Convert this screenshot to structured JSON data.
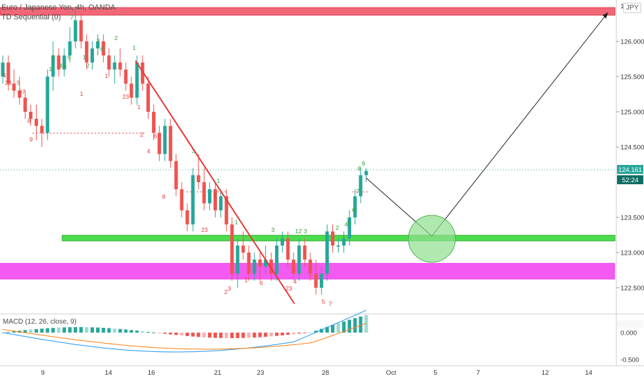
{
  "header": {
    "symbol_line": "Euro / Japanese Yen, 4h, OANDA",
    "indicator_line": "TD Sequential (0)"
  },
  "currency_tag": "JPY",
  "macd_label": "MACD (12, 26, close, 9)",
  "price_axis": {
    "ticks": [
      "126.000",
      "125.500",
      "125.000",
      "124.500",
      "123.500",
      "123.000",
      "122.500"
    ],
    "partial_labels": [
      "1",
      "1"
    ]
  },
  "price_tags": {
    "last": "124.161",
    "countdown": "52:24"
  },
  "macd_axis": {
    "ticks": [
      "0.000",
      "-0.500"
    ]
  },
  "time_axis": {
    "labels": [
      "9",
      "14",
      "16",
      "21",
      "23",
      "28",
      "Oct",
      "5",
      "7",
      "12",
      "14"
    ]
  },
  "colors": {
    "bull": "#26a69a",
    "bear": "#ef5350",
    "resistance_zone": "#f06778",
    "support_green": "#4ddc4d",
    "support_magenta": "#f25af2",
    "trendline": "#e53935",
    "target_circle": "#8fe08f",
    "tag_green": "#26a69a",
    "tag_dark": "#0f6e66",
    "macd_line": "#2196f3",
    "signal_line": "#ff7f0e"
  },
  "chart_data": {
    "type": "candlestick",
    "instrument": "Euro / Japanese Yen",
    "timeframe": "4h",
    "y_range": [
      122.2,
      126.9
    ],
    "visible_price_ticks": [
      126.0,
      125.5,
      125.0,
      124.5,
      123.5,
      123.0,
      122.5
    ],
    "last_price": 124.161,
    "candles_ohlc_approx": [
      [
        125.5,
        125.8,
        125.4,
        125.7
      ],
      [
        125.7,
        125.8,
        125.3,
        125.4
      ],
      [
        125.4,
        125.6,
        125.2,
        125.3
      ],
      [
        125.3,
        125.5,
        125.1,
        125.2
      ],
      [
        125.2,
        125.3,
        124.9,
        125.0
      ],
      [
        125.0,
        125.1,
        124.8,
        124.9
      ],
      [
        124.9,
        125.1,
        124.6,
        124.8
      ],
      [
        124.8,
        124.9,
        124.5,
        124.7
      ],
      [
        124.7,
        125.6,
        124.6,
        125.5
      ],
      [
        125.5,
        126.0,
        125.3,
        125.8
      ],
      [
        125.8,
        125.9,
        125.5,
        125.6
      ],
      [
        125.6,
        125.9,
        125.5,
        125.8
      ],
      [
        125.8,
        126.2,
        125.7,
        126.0
      ],
      [
        126.0,
        126.5,
        125.9,
        126.3
      ],
      [
        126.3,
        126.4,
        125.9,
        126.0
      ],
      [
        126.0,
        126.1,
        125.6,
        125.7
      ],
      [
        125.7,
        126.0,
        125.6,
        125.9
      ],
      [
        125.9,
        126.1,
        125.8,
        126.0
      ],
      [
        126.0,
        126.1,
        125.7,
        125.8
      ],
      [
        125.8,
        125.9,
        125.5,
        125.6
      ],
      [
        125.6,
        125.8,
        125.4,
        125.7
      ],
      [
        125.7,
        125.9,
        125.5,
        125.6
      ],
      [
        125.6,
        125.7,
        125.3,
        125.4
      ],
      [
        125.4,
        125.5,
        125.1,
        125.2
      ],
      [
        125.2,
        125.8,
        125.1,
        125.7
      ],
      [
        125.7,
        125.8,
        125.3,
        125.4
      ],
      [
        125.4,
        125.5,
        124.9,
        125.0
      ],
      [
        125.0,
        125.1,
        124.6,
        124.7
      ],
      [
        124.7,
        124.8,
        124.3,
        124.4
      ],
      [
        124.4,
        124.9,
        124.3,
        124.8
      ],
      [
        124.8,
        124.9,
        124.2,
        124.3
      ],
      [
        124.3,
        124.4,
        123.8,
        123.9
      ],
      [
        123.9,
        124.0,
        123.5,
        123.6
      ],
      [
        123.6,
        123.7,
        123.3,
        123.4
      ],
      [
        123.4,
        124.2,
        123.3,
        124.1
      ],
      [
        124.1,
        124.4,
        123.9,
        124.0
      ],
      [
        124.0,
        124.2,
        123.6,
        123.7
      ],
      [
        123.7,
        124.0,
        123.6,
        123.9
      ],
      [
        123.9,
        124.0,
        123.5,
        123.6
      ],
      [
        123.6,
        123.9,
        123.5,
        123.8
      ],
      [
        123.8,
        123.9,
        123.3,
        123.4
      ],
      [
        123.4,
        123.5,
        122.6,
        122.7
      ],
      [
        122.7,
        123.2,
        122.5,
        123.1
      ],
      [
        123.1,
        123.3,
        122.9,
        123.0
      ],
      [
        123.0,
        123.1,
        122.6,
        122.7
      ],
      [
        122.7,
        123.0,
        122.6,
        122.9
      ],
      [
        122.9,
        123.0,
        122.6,
        122.8
      ],
      [
        122.8,
        123.1,
        122.7,
        122.9
      ],
      [
        122.9,
        123.0,
        122.6,
        122.7
      ],
      [
        122.7,
        123.2,
        122.6,
        123.1
      ],
      [
        123.1,
        123.3,
        123.0,
        123.2
      ],
      [
        123.2,
        123.3,
        122.8,
        122.9
      ],
      [
        122.9,
        123.0,
        122.6,
        122.7
      ],
      [
        122.7,
        123.2,
        122.6,
        123.1
      ],
      [
        123.1,
        123.2,
        122.8,
        122.9
      ],
      [
        122.9,
        123.0,
        122.6,
        122.7
      ],
      [
        122.7,
        122.9,
        122.4,
        122.5
      ],
      [
        122.5,
        122.8,
        122.4,
        122.7
      ],
      [
        122.7,
        123.4,
        122.6,
        123.3
      ],
      [
        123.3,
        123.4,
        123.0,
        123.1
      ],
      [
        123.1,
        123.2,
        123.0,
        123.1
      ],
      [
        123.1,
        123.3,
        123.0,
        123.2
      ],
      [
        123.2,
        123.6,
        123.1,
        123.5
      ],
      [
        123.5,
        123.9,
        123.4,
        123.8
      ],
      [
        123.8,
        124.2,
        123.7,
        124.1
      ],
      [
        124.1,
        124.2,
        124.0,
        124.16
      ]
    ],
    "zones": [
      {
        "label": "resistance",
        "from": 126.35,
        "to": 126.5,
        "color": "#f06778"
      },
      {
        "label": "support",
        "from": 123.15,
        "to": 123.25,
        "color": "#4ddc4d"
      },
      {
        "label": "demand",
        "from": 122.6,
        "to": 122.85,
        "color": "#f25af2"
      }
    ],
    "projection_path_prices": [
      124.1,
      123.2,
      126.4
    ],
    "macd": {
      "ticks": [
        0.0,
        -0.5
      ]
    }
  }
}
